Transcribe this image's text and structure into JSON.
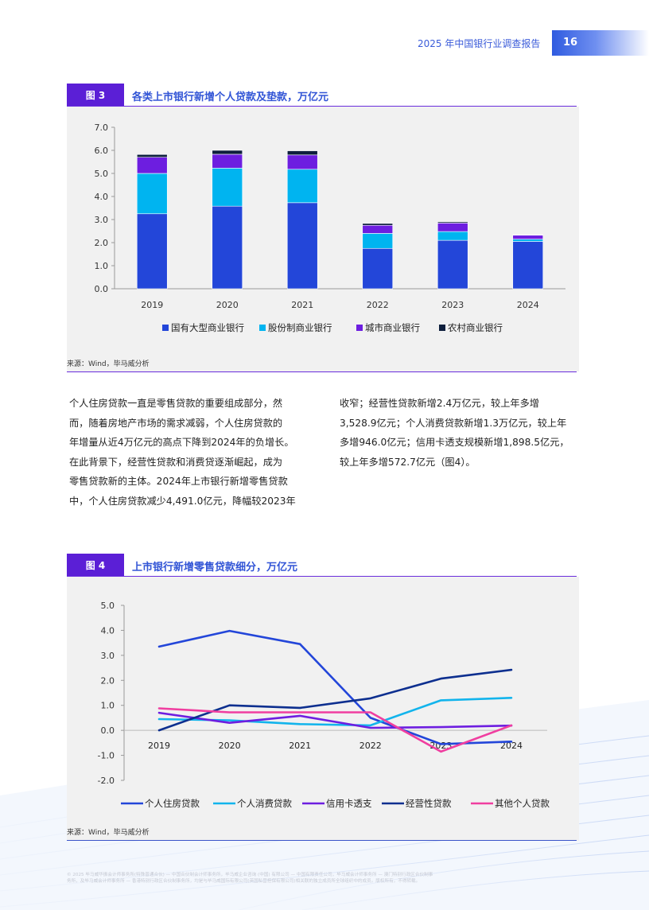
{
  "header": {
    "report_title": "2025 年中国银行业调查报告",
    "page_number": "16"
  },
  "figure3": {
    "label": "图 3",
    "title": "各类上市银行新增个人贷款及垫款，万亿元",
    "source": "来源：Wind，毕马威分析",
    "chart_data": {
      "type": "bar",
      "stacked": true,
      "categories": [
        "2019",
        "2020",
        "2021",
        "2022",
        "2023",
        "2024"
      ],
      "series": [
        {
          "name": "国有大型商业银行",
          "color": "#2346d9",
          "values": [
            3.25,
            3.58,
            3.73,
            1.75,
            2.1,
            2.05
          ]
        },
        {
          "name": "股份制商业银行",
          "color": "#00b4f0",
          "values": [
            1.75,
            1.65,
            1.45,
            0.65,
            0.38,
            0.1
          ]
        },
        {
          "name": "城市商业银行",
          "color": "#6d1ee0",
          "values": [
            0.7,
            0.6,
            0.62,
            0.35,
            0.37,
            0.17
          ]
        },
        {
          "name": "农村商业银行",
          "color": "#0e1f3d",
          "values": [
            0.12,
            0.17,
            0.18,
            0.08,
            0.05,
            0.02
          ]
        }
      ],
      "ylim": [
        0,
        7
      ],
      "yticks": [
        "0.0",
        "1.0",
        "2.0",
        "3.0",
        "4.0",
        "5.0",
        "6.0",
        "7.0"
      ],
      "legend_position": "bottom"
    }
  },
  "body": {
    "left_lines": [
      "个人住房贷款一直是零售贷款的重要组成部分，然",
      "而，随着房地产市场的需求减弱，个人住房贷款的",
      "年增量从近4万亿元的高点下降到2024年的负增长。",
      "在此背景下，经营性贷款和消费贷逐渐崛起，成为",
      "零售贷款新的主体。2024年上市银行新增零售贷款",
      "中，个人住房贷款减少4,491.0亿元，降幅较2023年"
    ],
    "right_lines": [
      "收窄；经营性贷款新增2.4万亿元，较上年多增",
      "3,528.9亿元；个人消费贷款新增1.3万亿元，较上年",
      "多增946.0亿元；信用卡透支规模新增1,898.5亿元，",
      "较上年多增572.7亿元（图4）。"
    ]
  },
  "figure4": {
    "label": "图 4",
    "title": "上市银行新增零售贷款细分，万亿元",
    "source": "来源：Wind，毕马威分析",
    "chart_data": {
      "type": "line",
      "x": [
        "2019",
        "2020",
        "2021",
        "2022",
        "2023",
        "2024"
      ],
      "series": [
        {
          "name": "个人住房贷款",
          "color": "#2346d9",
          "values": [
            3.35,
            3.98,
            3.45,
            0.5,
            -0.55,
            -0.45
          ]
        },
        {
          "name": "个人消费贷款",
          "color": "#12b4ec",
          "values": [
            0.45,
            0.4,
            0.25,
            0.2,
            1.2,
            1.3
          ]
        },
        {
          "name": "信用卡透支",
          "color": "#6d1ee0",
          "values": [
            0.7,
            0.3,
            0.58,
            0.1,
            0.13,
            0.19
          ]
        },
        {
          "name": "经营性贷款",
          "color": "#0d2f8f",
          "values": [
            0.0,
            1.0,
            0.9,
            1.28,
            2.07,
            2.42
          ]
        },
        {
          "name": "其他个人贷款",
          "color": "#f03ea0",
          "values": [
            0.88,
            0.72,
            0.72,
            0.72,
            -0.85,
            0.2
          ]
        }
      ],
      "ylim": [
        -2,
        5
      ],
      "yticks": [
        "-2.0",
        "-1.0",
        "0.0",
        "1.0",
        "2.0",
        "3.0",
        "4.0",
        "5.0"
      ],
      "legend_position": "bottom"
    }
  },
  "footer": {
    "line1": "© 2025 毕马威华振会计师事务所(特殊普通合伙) — 中国合伙制会计师事务所，毕马威企业咨询 (中国) 有限公司 — 中国有限责任公司，毕马威会计师事务所 — 澳门特别行政区合伙制事",
    "line2": "务所，及毕马威会计师事务所 — 香港特别行政区合伙制事务所，均是与毕马威国际有限公司(英国私营担保有限公司)相关联的独立成员所全球组织中的成员。版权所有，不得转载。"
  }
}
